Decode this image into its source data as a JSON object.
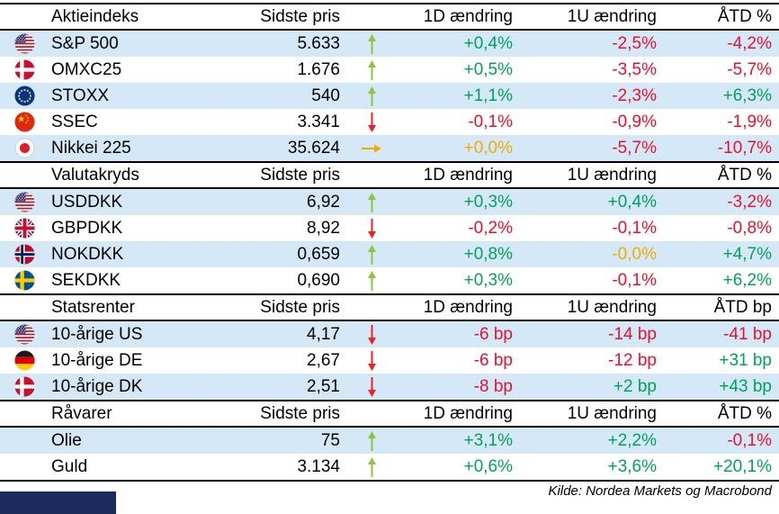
{
  "chart_data": {
    "type": "table",
    "sections": [
      {
        "title": "Aktieindeks",
        "price_header": "Sidste pris",
        "change_headers": [
          "1D ændring",
          "1U ændring",
          "ÅTD %"
        ],
        "rows": [
          {
            "flag": "us",
            "name": "S&P 500",
            "price": "5.633",
            "trend": "up",
            "changes": [
              {
                "v": "+0,4%",
                "c": "green"
              },
              {
                "v": "-2,5%",
                "c": "red"
              },
              {
                "v": "-4,2%",
                "c": "red"
              }
            ]
          },
          {
            "flag": "dk",
            "name": "OMXC25",
            "price": "1.676",
            "trend": "up",
            "changes": [
              {
                "v": "+0,5%",
                "c": "green"
              },
              {
                "v": "-3,5%",
                "c": "red"
              },
              {
                "v": "-5,7%",
                "c": "red"
              }
            ]
          },
          {
            "flag": "eu",
            "name": "STOXX",
            "price": "540",
            "trend": "up",
            "changes": [
              {
                "v": "+1,1%",
                "c": "green"
              },
              {
                "v": "-2,3%",
                "c": "red"
              },
              {
                "v": "+6,3%",
                "c": "green"
              }
            ]
          },
          {
            "flag": "cn",
            "name": "SSEC",
            "price": "3.341",
            "trend": "down",
            "changes": [
              {
                "v": "-0,1%",
                "c": "red"
              },
              {
                "v": "-0,9%",
                "c": "red"
              },
              {
                "v": "-1,9%",
                "c": "red"
              }
            ]
          },
          {
            "flag": "jp",
            "name": "Nikkei 225",
            "price": "35.624",
            "trend": "flat",
            "changes": [
              {
                "v": "+0,0%",
                "c": "amber"
              },
              {
                "v": "-5,7%",
                "c": "red"
              },
              {
                "v": "-10,7%",
                "c": "red"
              }
            ]
          }
        ]
      },
      {
        "title": "Valutakryds",
        "price_header": "Sidste pris",
        "change_headers": [
          "1D ændring",
          "1U ændring",
          "ÅTD %"
        ],
        "rows": [
          {
            "flag": "us",
            "name": "USDDKK",
            "price": "6,92",
            "trend": "up",
            "changes": [
              {
                "v": "+0,3%",
                "c": "green"
              },
              {
                "v": "+0,4%",
                "c": "green"
              },
              {
                "v": "-3,2%",
                "c": "red"
              }
            ]
          },
          {
            "flag": "gb",
            "name": "GBPDKK",
            "price": "8,92",
            "trend": "down",
            "changes": [
              {
                "v": "-0,2%",
                "c": "red"
              },
              {
                "v": "-0,1%",
                "c": "red"
              },
              {
                "v": "-0,8%",
                "c": "red"
              }
            ]
          },
          {
            "flag": "no",
            "name": "NOKDKK",
            "price": "0,659",
            "trend": "up",
            "changes": [
              {
                "v": "+0,8%",
                "c": "green"
              },
              {
                "v": "-0,0%",
                "c": "amber"
              },
              {
                "v": "+4,7%",
                "c": "green"
              }
            ]
          },
          {
            "flag": "se",
            "name": "SEKDKK",
            "price": "0,690",
            "trend": "up",
            "changes": [
              {
                "v": "+0,3%",
                "c": "green"
              },
              {
                "v": "-0,1%",
                "c": "red"
              },
              {
                "v": "+6,2%",
                "c": "green"
              }
            ]
          }
        ]
      },
      {
        "title": "Statsrenter",
        "price_header": "Sidste pris",
        "change_headers": [
          "1D ændring",
          "1U ændring",
          "ÅTD bp"
        ],
        "rows": [
          {
            "flag": "us",
            "name": "10-årige US",
            "price": "4,17",
            "trend": "down",
            "changes": [
              {
                "v": "-6 bp",
                "c": "red"
              },
              {
                "v": "-14 bp",
                "c": "red"
              },
              {
                "v": "-41 bp",
                "c": "red"
              }
            ]
          },
          {
            "flag": "de",
            "name": "10-årige DE",
            "price": "2,67",
            "trend": "down",
            "changes": [
              {
                "v": "-6 bp",
                "c": "red"
              },
              {
                "v": "-12 bp",
                "c": "red"
              },
              {
                "v": "+31 bp",
                "c": "green"
              }
            ]
          },
          {
            "flag": "dk",
            "name": "10-årige DK",
            "price": "2,51",
            "trend": "down",
            "changes": [
              {
                "v": "-8 bp",
                "c": "red"
              },
              {
                "v": "+2 bp",
                "c": "green"
              },
              {
                "v": "+43 bp",
                "c": "green"
              }
            ]
          }
        ]
      },
      {
        "title": "Råvarer",
        "price_header": "Sidste pris",
        "change_headers": [
          "1D ændring",
          "1U ændring",
          "ÅTD %"
        ],
        "rows": [
          {
            "flag": null,
            "name": "Olie",
            "price": "75",
            "trend": "up",
            "changes": [
              {
                "v": "+3,1%",
                "c": "green"
              },
              {
                "v": "+2,2%",
                "c": "green"
              },
              {
                "v": "-0,1%",
                "c": "red"
              }
            ]
          },
          {
            "flag": null,
            "name": "Guld",
            "price": "3.134",
            "trend": "up",
            "changes": [
              {
                "v": "+0,6%",
                "c": "green"
              },
              {
                "v": "+3,6%",
                "c": "green"
              },
              {
                "v": "+20,1%",
                "c": "green"
              }
            ]
          }
        ]
      }
    ]
  },
  "footer": {
    "source": "Kilde: Nordea Markets og Macrobond"
  },
  "colors": {
    "positive": "#00A25A",
    "negative": "#E8112D",
    "neutral": "#EFAC00",
    "arrow_up": "#8CC63F",
    "arrow_down": "#ED2024",
    "arrow_flat": "#F2A900",
    "row_stripe": "#D5E8F7",
    "border": "#000000",
    "brand_bar": "#1D2B5C"
  }
}
